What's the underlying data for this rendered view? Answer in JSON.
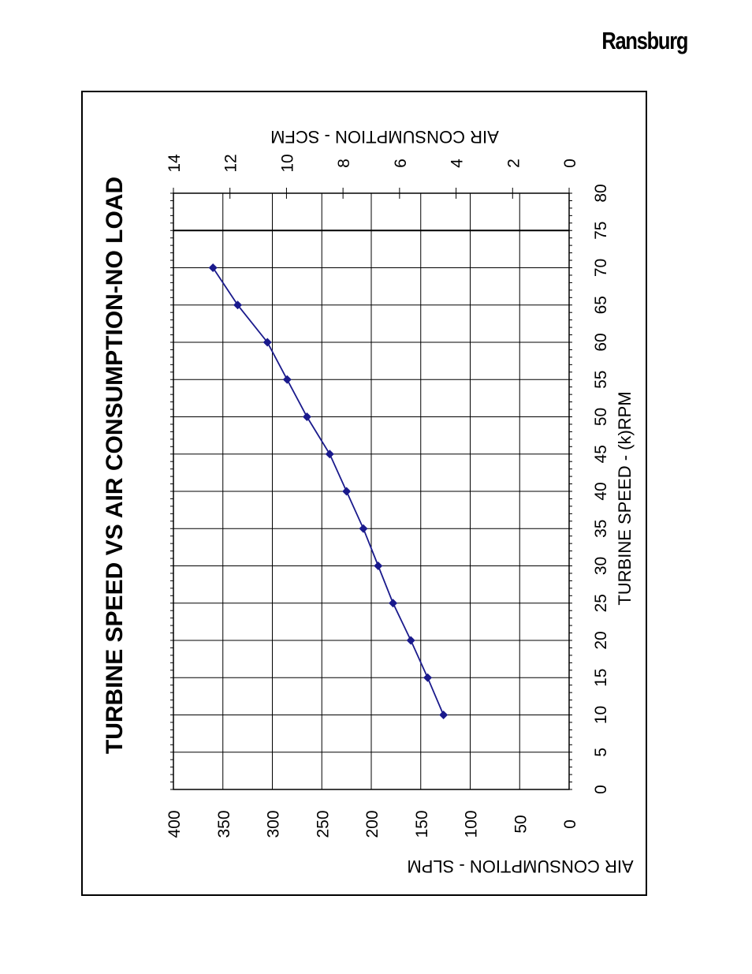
{
  "header": {
    "brand": "Ransburg"
  },
  "chart_data": {
    "type": "line",
    "title": "TURBINE SPEED VS AIR CONSUMPTION-NO LOAD",
    "xlabel": "TURBINE SPEED -  (k)RPM",
    "ylabel": "AIR CONSUMPTION - SLPM",
    "y2label": "AIR CONSUMPTION - SCFM",
    "xlim": [
      0,
      80
    ],
    "ylim": [
      0,
      400
    ],
    "y2lim": [
      0,
      14
    ],
    "xticks": [
      "0",
      "5",
      "10",
      "15",
      "20",
      "25",
      "30",
      "35",
      "40",
      "45",
      "50",
      "55",
      "60",
      "65",
      "70",
      "75",
      "80"
    ],
    "yticks": [
      "0",
      "50",
      "100",
      "150",
      "200",
      "250",
      "300",
      "350",
      "400"
    ],
    "y2ticks": [
      "0",
      "2",
      "4",
      "6",
      "8",
      "10",
      "12",
      "14"
    ],
    "grid": true,
    "reference_line_x": 75,
    "orientation": "rotated 90° counter-clockwise",
    "line_color": "#1a1a8c",
    "series": [
      {
        "x": [
          10,
          15,
          20,
          25,
          30,
          35,
          40,
          45,
          50,
          55,
          60,
          65,
          70
        ],
        "values": [
          127,
          143,
          160,
          178,
          193,
          208,
          225,
          242,
          265,
          285,
          305,
          335,
          360
        ]
      }
    ]
  }
}
